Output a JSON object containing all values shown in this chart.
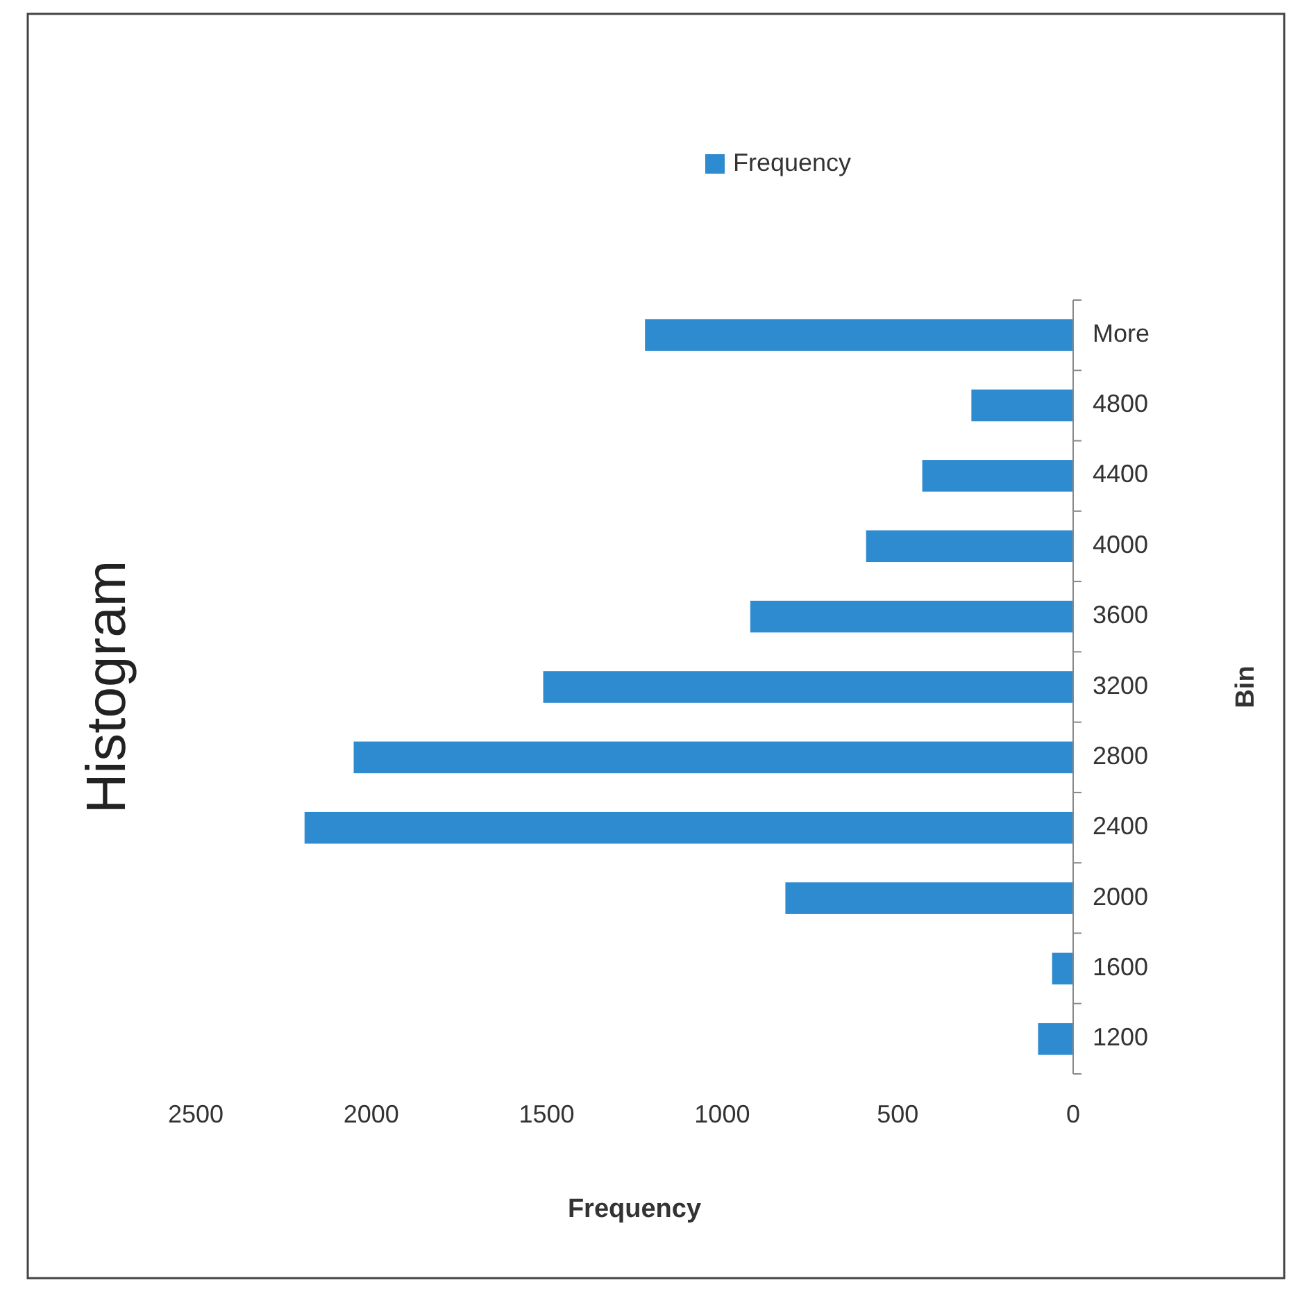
{
  "chart_data": {
    "type": "bar",
    "orientation": "horizontal",
    "title": "Histogram",
    "xlabel": "Frequency",
    "ylabel": "Bin",
    "categories": [
      "More",
      "4800",
      "4400",
      "4000",
      "3600",
      "3200",
      "2800",
      "2400",
      "2000",
      "1600",
      "1200"
    ],
    "series": [
      {
        "name": "Frequency",
        "color": "#2f8bd0",
        "values": [
          1220,
          290,
          430,
          590,
          920,
          1510,
          2050,
          2190,
          820,
          60,
          100
        ]
      }
    ],
    "xlim": [
      2500,
      0
    ],
    "xticks": [
      2500,
      2000,
      1500,
      1000,
      500,
      0
    ],
    "grid": false,
    "legend": "top right"
  }
}
